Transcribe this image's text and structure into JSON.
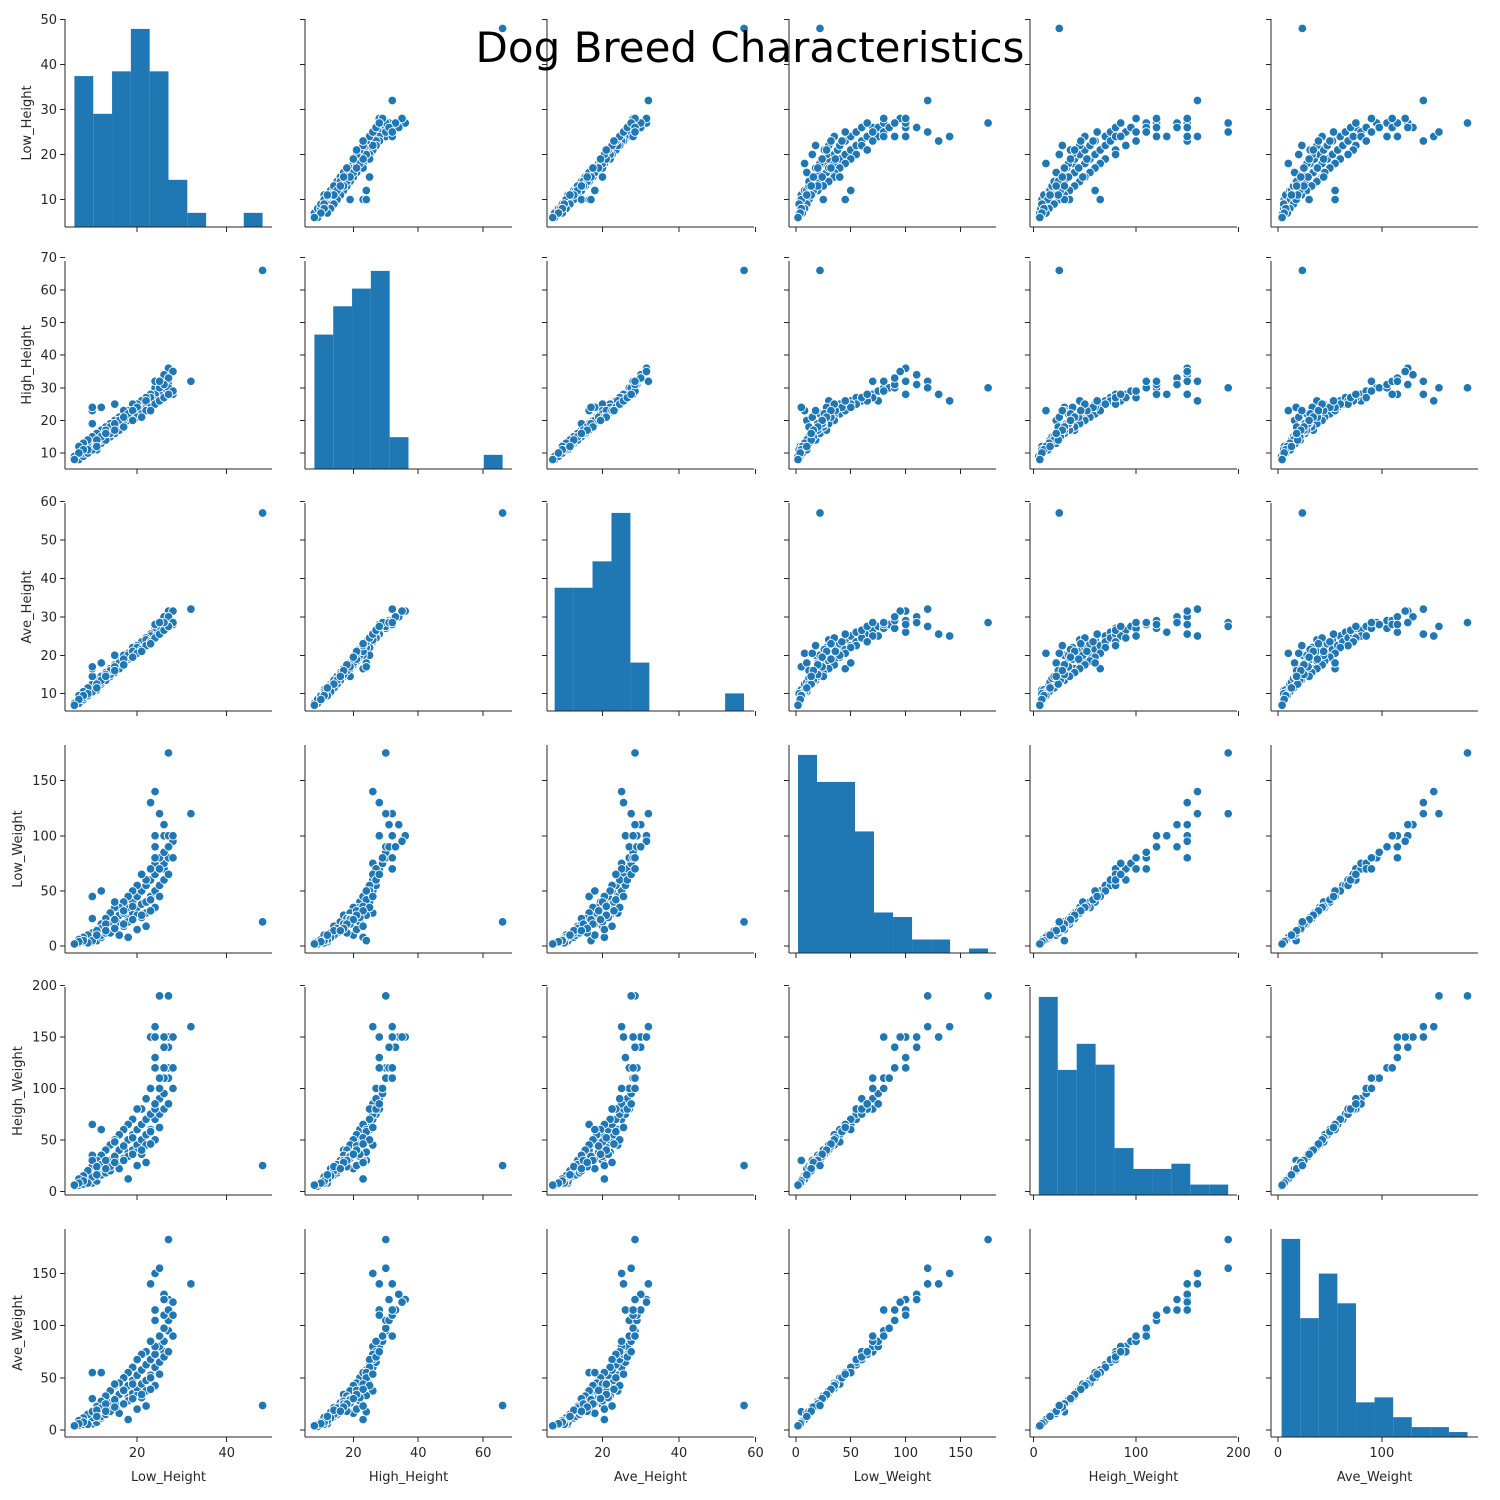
{
  "chart_data": {
    "type": "scatter",
    "kind": "pairplot",
    "title": "Dog Breed Characteristics",
    "color": "#1f77b4",
    "marker_edge_color": "#ffffff",
    "variables": [
      "Low_Height",
      "High_Height",
      "Ave_Height",
      "Low_Weight",
      "Heigh_Weight",
      "Ave_Weight"
    ],
    "variable_labels": [
      "Low_Height",
      "High_Height",
      "Ave_Height",
      "Low_Weight",
      "Heigh_Weight",
      "Ave_Weight"
    ],
    "axis_ranges": {
      "Low_Height": [
        3.9,
        50.1
      ],
      "High_Height": [
        5.1,
        68.9
      ],
      "Ave_Height": [
        5.5,
        59.6
      ],
      "Low_Weight": [
        -6.2,
        182.2
      ],
      "Heigh_Weight": [
        -3.6,
        198.6
      ],
      "Ave_Weight": [
        -6.7,
        192.6
      ]
    },
    "x_ticks": {
      "Low_Height": [
        20,
        40
      ],
      "High_Height": [
        20,
        40,
        60
      ],
      "Ave_Height": [
        20,
        40,
        60
      ],
      "Low_Weight": [
        0,
        50,
        100,
        150
      ],
      "Heigh_Weight": [
        0,
        100,
        200
      ],
      "Ave_Weight": [
        0,
        100
      ]
    },
    "y_ticks": {
      "Low_Height": [
        10,
        20,
        30,
        40,
        50
      ],
      "High_Height": [
        10,
        20,
        30,
        40,
        50,
        60,
        70
      ],
      "Ave_Height": [
        10,
        20,
        30,
        40,
        50,
        60
      ],
      "Low_Weight": [
        0,
        50,
        100,
        150
      ],
      "Heigh_Weight": [
        0,
        50,
        100,
        150,
        200
      ],
      "Ave_Weight": [
        0,
        50,
        100,
        150
      ]
    },
    "histograms": {
      "Low_Height": {
        "bins": [
          6.0,
          10.2,
          14.4,
          18.6,
          22.8,
          27.0,
          31.2,
          35.4,
          39.6,
          43.8,
          48.0
        ],
        "counts": [
          32,
          24,
          33,
          42,
          33,
          10,
          3,
          0,
          0,
          3
        ]
      },
      "High_Height": {
        "bins": [
          8.0,
          13.8,
          19.6,
          25.4,
          31.2,
          37.0,
          42.8,
          48.6,
          54.4,
          60.2,
          66.0
        ],
        "counts": [
          38,
          46,
          51,
          56,
          9,
          0,
          0,
          0,
          0,
          4
        ]
      },
      "Ave_Height": {
        "bins": [
          7.5,
          12.45,
          17.4,
          22.35,
          27.3,
          32.25,
          37.2,
          42.15,
          47.1,
          52.05,
          57.0
        ],
        "counts": [
          28,
          28,
          34,
          45,
          11,
          0,
          0,
          0,
          0,
          4
        ]
      },
      "Low_Weight": {
        "bins": [
          2.0,
          19.3,
          36.6,
          53.9,
          71.2,
          88.5,
          105.8,
          123.1,
          140.4,
          157.7,
          175.0
        ],
        "counts": [
          44,
          38,
          38,
          27,
          9,
          8,
          3,
          3,
          0,
          1
        ]
      },
      "Heigh_Weight": {
        "bins": [
          5.0,
          23.5,
          42.0,
          60.5,
          79.0,
          97.5,
          116.0,
          134.5,
          153.0,
          171.5,
          190.0
        ],
        "counts": [
          38,
          24,
          29,
          25,
          9,
          5,
          5,
          6,
          2,
          2
        ]
      },
      "Ave_Weight": {
        "bins": [
          3.5,
          21.4,
          39.3,
          57.2,
          75.1,
          93.0,
          110.9,
          128.8,
          146.7,
          164.6,
          182.5
        ],
        "counts": [
          40,
          24,
          33,
          27,
          7,
          8,
          4,
          2,
          2,
          1
        ]
      }
    },
    "records": [
      [
        6,
        9,
        7.5,
        2,
        5,
        3.5
      ],
      [
        7,
        8,
        7.5,
        3,
        6,
        4.5
      ],
      [
        8,
        9,
        8.5,
        4,
        7,
        5.5
      ],
      [
        8,
        10,
        9,
        5,
        10,
        7.5
      ],
      [
        9,
        10,
        9.5,
        6,
        9,
        7.5
      ],
      [
        10,
        12,
        11,
        4,
        8,
        6
      ],
      [
        11,
        11,
        11,
        5,
        10,
        7.5
      ],
      [
        9,
        12,
        10.5,
        7,
        12,
        9.5
      ],
      [
        12,
        13,
        12.5,
        8,
        15,
        11.5
      ],
      [
        10,
        11,
        10.5,
        10,
        14,
        12
      ],
      [
        12,
        14,
        13,
        10,
        16,
        13
      ],
      [
        13,
        15,
        14,
        12,
        18,
        15
      ],
      [
        11,
        13,
        12,
        12,
        22,
        17
      ],
      [
        14,
        15,
        14.5,
        14,
        20,
        17
      ],
      [
        15,
        16,
        15.5,
        15,
        25,
        20
      ],
      [
        13,
        14,
        13.5,
        18,
        25,
        21.5
      ],
      [
        16,
        18,
        17,
        20,
        28,
        24
      ],
      [
        14,
        16,
        15,
        22,
        30,
        26
      ],
      [
        17,
        19,
        18,
        20,
        32,
        26
      ],
      [
        15,
        18,
        16.5,
        25,
        35,
        30
      ],
      [
        18,
        20,
        19,
        25,
        38,
        31.5
      ],
      [
        16,
        17,
        16.5,
        28,
        40,
        34
      ],
      [
        19,
        21,
        20,
        30,
        40,
        35
      ],
      [
        17,
        20,
        18.5,
        30,
        45,
        37.5
      ],
      [
        20,
        22,
        21,
        35,
        45,
        40
      ],
      [
        18,
        21,
        19.5,
        35,
        50,
        42.5
      ],
      [
        21,
        23,
        22,
        38,
        50,
        44
      ],
      [
        19,
        22,
        20.5,
        40,
        55,
        47.5
      ],
      [
        22,
        24,
        23,
        40,
        55,
        47.5
      ],
      [
        20,
        23,
        21.5,
        45,
        60,
        52.5
      ],
      [
        23,
        25,
        24,
        45,
        60,
        52.5
      ],
      [
        21,
        24,
        22.5,
        50,
        65,
        57.5
      ],
      [
        24,
        26,
        25,
        50,
        70,
        60
      ],
      [
        22,
        25,
        23.5,
        55,
        70,
        62.5
      ],
      [
        25,
        27,
        26,
        55,
        75,
        65
      ],
      [
        23,
        26,
        24.5,
        60,
        75,
        67.5
      ],
      [
        24,
        27,
        25.5,
        65,
        80,
        72.5
      ],
      [
        26,
        28,
        27,
        70,
        80,
        75
      ],
      [
        25,
        28,
        26.5,
        70,
        90,
        80
      ],
      [
        24,
        26,
        25,
        75,
        85,
        80
      ],
      [
        26,
        29,
        27.5,
        75,
        95,
        85
      ],
      [
        25,
        29,
        27,
        80,
        100,
        90
      ],
      [
        27,
        30,
        28.5,
        80,
        110,
        95
      ],
      [
        26,
        30,
        28,
        85,
        110,
        97.5
      ],
      [
        24,
        30,
        27,
        90,
        120,
        105
      ],
      [
        27,
        31,
        29,
        90,
        120,
        105
      ],
      [
        26,
        32,
        29,
        100,
        120,
        110
      ],
      [
        24,
        28,
        26,
        100,
        130,
        115
      ],
      [
        27,
        36,
        31.5,
        100,
        150,
        125
      ],
      [
        26,
        34,
        30,
        110,
        150,
        130
      ],
      [
        23,
        28,
        25.5,
        130,
        150,
        140
      ],
      [
        24,
        26,
        25,
        140,
        160,
        150
      ],
      [
        27,
        30,
        28.5,
        175,
        190,
        182.5
      ],
      [
        32,
        32,
        32,
        120,
        160,
        140
      ],
      [
        28,
        35,
        31.5,
        95,
        150,
        122.5
      ],
      [
        27,
        33,
        30,
        90,
        140,
        115
      ],
      [
        25,
        30,
        27.5,
        120,
        190,
        155
      ],
      [
        28,
        28,
        28,
        100,
        120,
        110
      ],
      [
        24,
        32,
        28,
        80,
        150,
        115
      ],
      [
        23,
        27,
        25,
        70,
        100,
        85
      ],
      [
        22,
        27,
        24.5,
        60,
        90,
        75
      ],
      [
        21,
        26,
        23.5,
        65,
        80,
        72.5
      ],
      [
        20,
        25,
        22.5,
        55,
        80,
        67.5
      ],
      [
        19,
        25,
        22,
        50,
        70,
        60
      ],
      [
        18,
        23,
        20.5,
        45,
        65,
        55
      ],
      [
        17,
        22,
        19.5,
        40,
        60,
        50
      ],
      [
        16,
        21,
        18.5,
        35,
        55,
        45
      ],
      [
        15,
        20,
        17.5,
        35,
        50,
        42.5
      ],
      [
        14,
        19,
        16.5,
        30,
        45,
        37.5
      ],
      [
        13,
        18,
        15.5,
        25,
        40,
        32.5
      ],
      [
        12,
        17,
        14.5,
        20,
        35,
        27.5
      ],
      [
        11,
        16,
        13.5,
        15,
        30,
        22.5
      ],
      [
        10,
        15,
        12.5,
        12,
        25,
        18.5
      ],
      [
        9,
        14,
        11.5,
        10,
        20,
        15
      ],
      [
        8,
        13,
        10.5,
        8,
        15,
        11.5
      ],
      [
        7,
        12,
        9.5,
        6,
        12,
        9
      ],
      [
        10,
        19,
        14.5,
        25,
        35,
        30
      ],
      [
        10,
        23,
        16.5,
        45,
        65,
        55
      ],
      [
        12,
        24,
        18,
        50,
        60,
        55
      ],
      [
        18,
        23,
        20.5,
        8,
        12,
        10
      ],
      [
        10,
        24,
        17,
        5,
        30,
        17.5
      ],
      [
        15,
        25,
        20,
        40,
        48,
        44
      ],
      [
        22,
        26,
        24,
        30,
        45,
        37.5
      ],
      [
        20,
        24,
        22,
        28,
        38,
        33
      ],
      [
        17,
        23,
        20,
        18,
        30,
        24
      ],
      [
        16,
        20,
        18,
        10,
        22,
        16
      ],
      [
        14,
        18,
        16,
        12,
        24,
        18
      ],
      [
        12,
        15,
        13.5,
        16,
        26,
        21
      ],
      [
        18,
        22,
        20,
        22,
        34,
        28
      ],
      [
        21,
        22,
        21.5,
        26,
        36,
        31
      ],
      [
        23,
        24,
        23.5,
        42,
        58,
        50
      ],
      [
        19,
        23,
        21,
        36,
        52,
        44
      ],
      [
        17,
        21,
        19,
        32,
        44,
        38
      ],
      [
        15,
        19,
        17,
        24,
        34,
        29
      ],
      [
        13,
        17,
        15,
        20,
        30,
        25
      ],
      [
        11,
        14,
        12.5,
        14,
        24,
        19
      ],
      [
        9,
        11,
        10,
        3,
        8,
        5.5
      ],
      [
        8,
        11,
        9.5,
        5,
        10,
        7.5
      ],
      [
        7,
        10,
        8.5,
        4,
        8,
        6
      ],
      [
        6,
        8,
        7,
        2,
        6,
        4
      ],
      [
        20,
        21,
        20.5,
        15,
        25,
        20
      ],
      [
        22,
        23,
        22.5,
        18,
        28,
        23
      ],
      [
        24,
        25,
        24.5,
        35,
        50,
        42.5
      ],
      [
        25,
        26,
        25.5,
        45,
        62,
        53.5
      ],
      [
        26,
        27,
        26.5,
        60,
        80,
        70
      ],
      [
        28,
        29,
        28.5,
        80,
        100,
        90
      ],
      [
        27,
        28,
        27.5,
        65,
        85,
        75
      ],
      [
        23,
        23,
        23,
        32,
        46,
        39
      ],
      [
        21,
        21,
        21,
        28,
        40,
        34
      ],
      [
        19,
        20,
        19.5,
        24,
        36,
        30
      ],
      [
        17,
        18,
        17.5,
        20,
        30,
        25
      ],
      [
        15,
        17,
        16,
        16,
        28,
        22
      ],
      [
        13,
        16,
        14.5,
        14,
        22,
        18
      ],
      [
        11,
        12,
        11.5,
        10,
        16,
        13
      ],
      [
        26,
        31,
        28.5,
        110,
        140,
        125
      ],
      [
        25,
        32,
        28.5,
        70,
        110,
        90
      ],
      [
        48,
        66,
        57,
        22,
        25,
        23.5
      ]
    ]
  }
}
